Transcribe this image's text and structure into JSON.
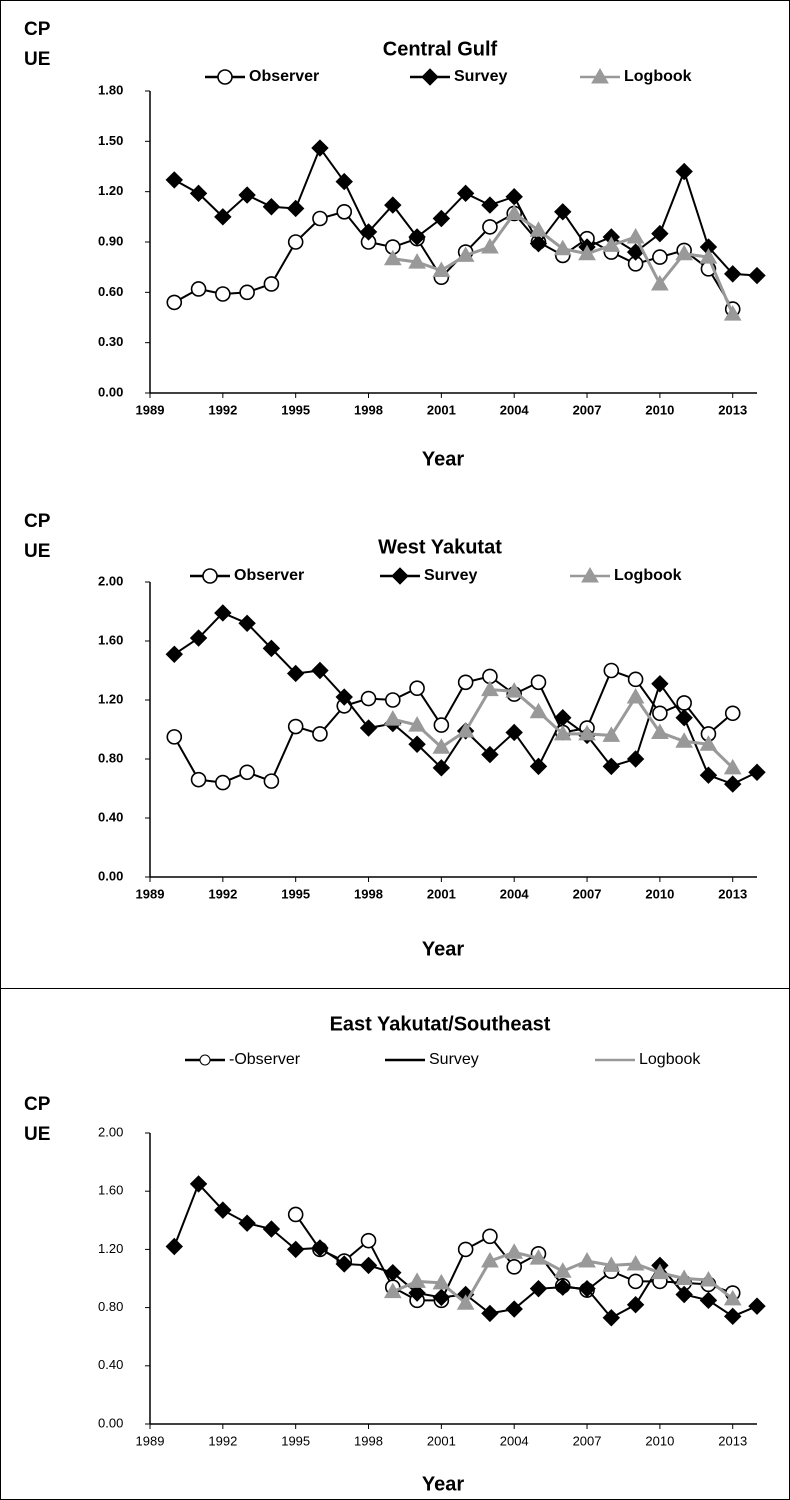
{
  "chart_data": [
    {
      "type": "line",
      "title": "Central Gulf",
      "y_label": [
        "CP",
        "UE"
      ],
      "x_label": "Year",
      "x": [
        1990,
        1991,
        1992,
        1993,
        1994,
        1995,
        1996,
        1997,
        1998,
        1999,
        2000,
        2001,
        2002,
        2003,
        2004,
        2005,
        2006,
        2007,
        2008,
        2009,
        2010,
        2011,
        2012,
        2013,
        2014
      ],
      "xlim": [
        1989,
        2014
      ],
      "xticks": [
        1989,
        1992,
        1995,
        1998,
        2001,
        2004,
        2007,
        2010,
        2013
      ],
      "ylim": [
        0,
        1.8
      ],
      "yticks": [
        {
          "value": 0,
          "label": "0.00"
        },
        {
          "value": 0.3,
          "label": "0.30"
        },
        {
          "value": 0.6,
          "label": "0.60"
        },
        {
          "value": 0.9,
          "label": "0.90"
        },
        {
          "value": 1.2,
          "label": "1.20"
        },
        {
          "value": 1.5,
          "label": "1.50"
        },
        {
          "value": 1.8,
          "label": "1.80"
        }
      ],
      "series": [
        {
          "name": "Observer",
          "color": "#000000",
          "marker": "circle",
          "values": [
            0.54,
            0.62,
            0.59,
            0.6,
            0.65,
            0.9,
            1.04,
            1.08,
            0.9,
            0.87,
            0.92,
            0.69,
            0.84,
            0.99,
            1.07,
            0.9,
            0.82,
            0.92,
            0.84,
            0.77,
            0.81,
            0.85,
            0.74,
            0.5,
            null
          ]
        },
        {
          "name": "Survey",
          "color": "#000000",
          "marker": "diamond",
          "values": [
            1.27,
            1.19,
            1.05,
            1.18,
            1.11,
            1.1,
            1.46,
            1.26,
            0.96,
            1.12,
            0.93,
            1.04,
            1.19,
            1.12,
            1.17,
            0.89,
            1.08,
            0.87,
            0.93,
            0.84,
            0.95,
            1.32,
            0.87,
            0.71,
            0.7
          ]
        },
        {
          "name": "Logbook",
          "color": "#999999",
          "marker": "triangle",
          "values": [
            null,
            null,
            null,
            null,
            null,
            null,
            null,
            null,
            null,
            0.8,
            0.78,
            0.73,
            0.82,
            0.87,
            1.07,
            0.97,
            0.86,
            0.83,
            0.88,
            0.93,
            0.65,
            0.83,
            0.81,
            0.47,
            null
          ]
        }
      ]
    },
    {
      "type": "line",
      "title": "West Yakutat",
      "y_label": [
        "CP",
        "UE"
      ],
      "x_label": "Year",
      "x": [
        1990,
        1991,
        1992,
        1993,
        1994,
        1995,
        1996,
        1997,
        1998,
        1999,
        2000,
        2001,
        2002,
        2003,
        2004,
        2005,
        2006,
        2007,
        2008,
        2009,
        2010,
        2011,
        2012,
        2013,
        2014
      ],
      "xlim": [
        1989,
        2014
      ],
      "xticks": [
        1989,
        1992,
        1995,
        1998,
        2001,
        2004,
        2007,
        2010,
        2013
      ],
      "ylim": [
        0,
        2
      ],
      "yticks": [
        {
          "value": 0,
          "label": "0.00"
        },
        {
          "value": 0.4,
          "label": "0.40"
        },
        {
          "value": 0.8,
          "label": "0.80"
        },
        {
          "value": 1.2,
          "label": "1.20"
        },
        {
          "value": 1.6,
          "label": "1.60"
        },
        {
          "value": 2,
          "label": "2.00"
        }
      ],
      "series": [
        {
          "name": "Observer",
          "color": "#000000",
          "marker": "circle",
          "values": [
            0.95,
            0.66,
            0.64,
            0.71,
            0.65,
            1.02,
            0.97,
            1.16,
            1.21,
            1.2,
            1.28,
            1.03,
            1.32,
            1.36,
            1.24,
            1.32,
            0.98,
            1.01,
            1.4,
            1.34,
            1.11,
            1.18,
            0.97,
            1.11,
            null
          ]
        },
        {
          "name": "Survey",
          "color": "#000000",
          "marker": "diamond",
          "values": [
            1.51,
            1.62,
            1.79,
            1.72,
            1.55,
            1.38,
            1.4,
            1.22,
            1.01,
            1.04,
            0.9,
            0.74,
            0.99,
            0.83,
            0.98,
            0.75,
            1.08,
            0.96,
            0.75,
            0.8,
            1.31,
            1.08,
            0.69,
            0.63,
            0.71
          ]
        },
        {
          "name": "Logbook",
          "color": "#999999",
          "marker": "triangle",
          "values": [
            null,
            null,
            null,
            null,
            null,
            null,
            null,
            null,
            null,
            1.07,
            1.03,
            0.88,
            0.99,
            1.27,
            1.26,
            1.12,
            0.97,
            0.97,
            0.96,
            1.22,
            0.98,
            0.92,
            0.9,
            0.74,
            null
          ]
        }
      ]
    },
    {
      "type": "line",
      "title": "East Yakutat/Southeast",
      "y_label": [
        "CP",
        "UE"
      ],
      "x_label": "Year",
      "x": [
        1990,
        1991,
        1992,
        1993,
        1994,
        1995,
        1996,
        1997,
        1998,
        1999,
        2000,
        2001,
        2002,
        2003,
        2004,
        2005,
        2006,
        2007,
        2008,
        2009,
        2010,
        2011,
        2012,
        2013,
        2014
      ],
      "xlim": [
        1989,
        2014
      ],
      "xticks": [
        1989,
        1992,
        1995,
        1998,
        2001,
        2004,
        2007,
        2010,
        2013
      ],
      "ylim": [
        0,
        2
      ],
      "yticks": [
        {
          "value": 0,
          "label": "0.00"
        },
        {
          "value": 0.4,
          "label": "0.40"
        },
        {
          "value": 0.8,
          "label": "0.80"
        },
        {
          "value": 1.2,
          "label": "1.20"
        },
        {
          "value": 1.6,
          "label": "1.60"
        },
        {
          "value": 2,
          "label": "2.00"
        }
      ],
      "series": [
        {
          "name": "-Observer",
          "color": "#000000",
          "marker": "circle",
          "values": [
            null,
            null,
            null,
            null,
            null,
            1.44,
            1.2,
            1.12,
            1.26,
            0.94,
            0.85,
            0.85,
            1.2,
            1.29,
            1.08,
            1.17,
            0.95,
            0.92,
            1.05,
            0.98,
            0.98,
            0.97,
            0.96,
            0.9,
            null
          ]
        },
        {
          "name": "Survey",
          "color": "#000000",
          "marker": "diamond",
          "values": [
            1.22,
            1.65,
            1.47,
            1.38,
            1.34,
            1.2,
            1.21,
            1.1,
            1.09,
            1.04,
            0.9,
            0.87,
            0.89,
            0.76,
            0.79,
            0.93,
            0.94,
            0.93,
            0.73,
            0.82,
            1.09,
            0.89,
            0.85,
            0.74,
            0.81
          ]
        },
        {
          "name": "Logbook",
          "color": "#999999",
          "marker": "triangle",
          "values": [
            null,
            null,
            null,
            null,
            null,
            null,
            null,
            null,
            null,
            0.91,
            0.98,
            0.97,
            0.83,
            1.12,
            1.18,
            1.14,
            1.05,
            1.12,
            1.09,
            1.1,
            1.04,
            1.0,
            0.99,
            0.86,
            null
          ]
        }
      ]
    }
  ]
}
